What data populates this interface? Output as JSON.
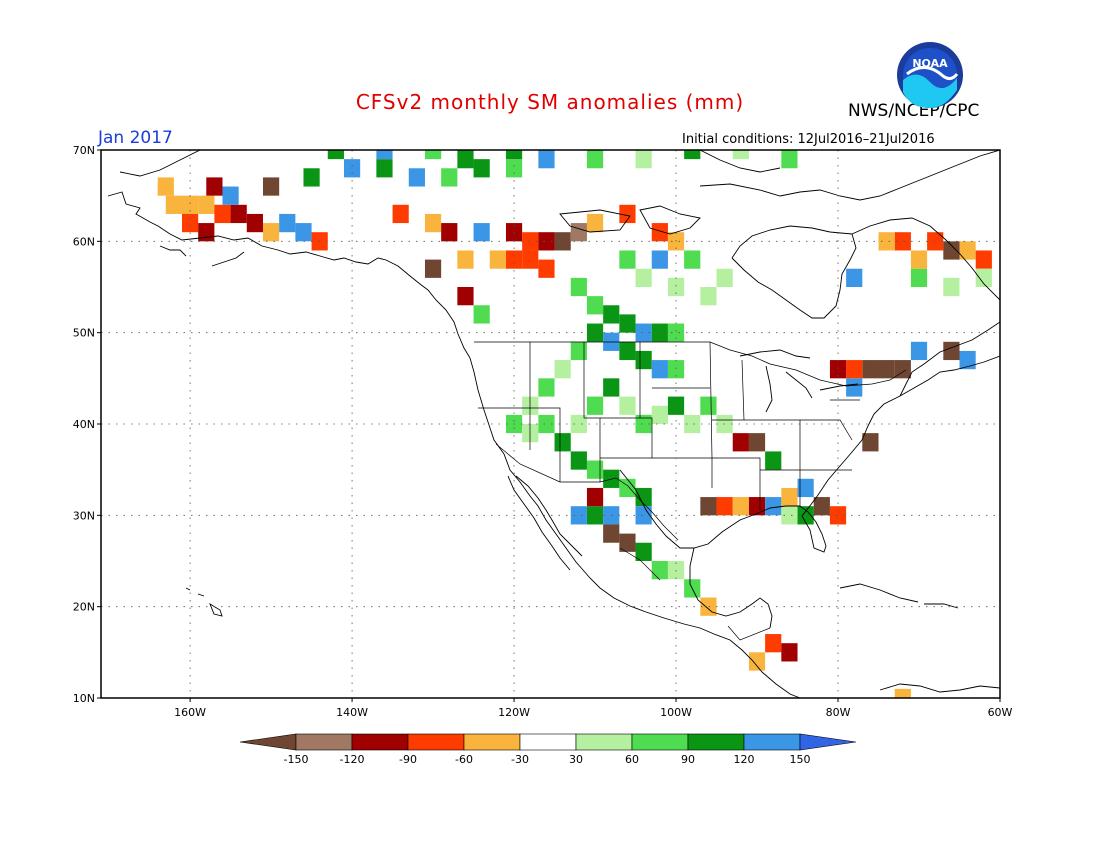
{
  "header": {
    "title": "CFSv2 monthly SM anomalies (mm)",
    "valid": "Jan 2017",
    "agency": "NWS/NCEP/CPC",
    "initial_conditions": "Initial conditions: 12Jul2016–21Jul2016",
    "logo_text": "NOAA",
    "logo_icon": "noaa-logo-icon"
  },
  "axes": {
    "lat_ticks": [
      {
        "value": 70,
        "label": "70N"
      },
      {
        "value": 60,
        "label": "60N"
      },
      {
        "value": 50,
        "label": "50N"
      },
      {
        "value": 40,
        "label": "40N"
      },
      {
        "value": 30,
        "label": "30N"
      },
      {
        "value": 20,
        "label": "20N"
      },
      {
        "value": 10,
        "label": "10N"
      }
    ],
    "lon_ticks": [
      {
        "value": -160,
        "label": "160W"
      },
      {
        "value": -140,
        "label": "140W"
      },
      {
        "value": -120,
        "label": "120W"
      },
      {
        "value": -100,
        "label": "100W"
      },
      {
        "value": -80,
        "label": "80W"
      },
      {
        "value": -60,
        "label": "60W"
      }
    ],
    "lon_range": [
      -171,
      -60
    ],
    "lat_range": [
      10,
      70
    ]
  },
  "colorbar": {
    "colors": [
      "#6e4632",
      "#a07864",
      "#a00000",
      "#ff3c00",
      "#f8b43c",
      "#ffffff",
      "#b4f0a0",
      "#50dc50",
      "#0a9614",
      "#3c96e6",
      "#3264e6"
    ],
    "labels": [
      "-150",
      "-120",
      "-90",
      "-60",
      "-30",
      "30",
      "60",
      "90",
      "120",
      "150"
    ]
  },
  "map_colors": {
    "land_outline": "#000000",
    "grid": "#555555"
  }
}
